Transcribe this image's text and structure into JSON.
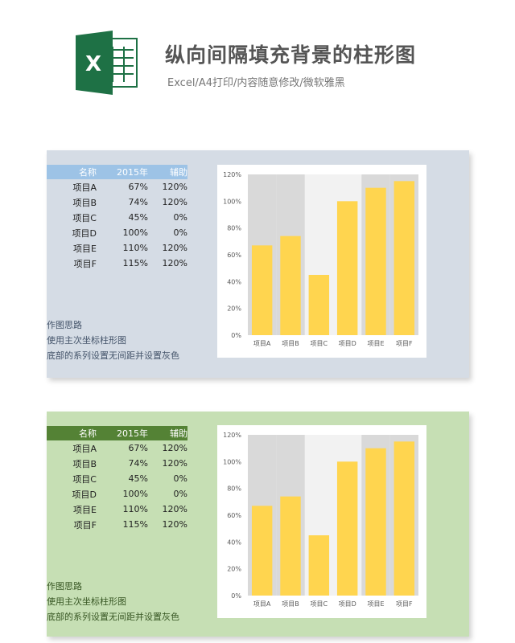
{
  "header": {
    "title": "纵向间隔填充背景的柱形图",
    "subtitle": "Excel/A4打印/内容随意修改/微软雅黑",
    "logo_letter": "X"
  },
  "colors": {
    "panel_1_bg": "#d5dce5",
    "panel_1_header": "#9dc3e6",
    "panel_2_bg": "#c6dfb4",
    "panel_2_header": "#548235",
    "bar": "#ffd54f",
    "band": "#d9d9d9",
    "plot_bg": "#f2f2f2",
    "logo_green": "#1e7145"
  },
  "panels": [
    {
      "table": {
        "headers": [
          "名称",
          "2015年",
          "辅助"
        ],
        "rows": [
          [
            "项目A",
            "67%",
            "120%"
          ],
          [
            "项目B",
            "74%",
            "120%"
          ],
          [
            "项目C",
            "45%",
            "0%"
          ],
          [
            "项目D",
            "100%",
            "0%"
          ],
          [
            "项目E",
            "110%",
            "120%"
          ],
          [
            "项目F",
            "115%",
            "120%"
          ]
        ]
      },
      "notes": [
        "作图思路",
        "使用主次坐标柱形图",
        "底部的系列设置无间距并设置灰色"
      ]
    },
    {
      "table": {
        "headers": [
          "名称",
          "2015年",
          "辅助"
        ],
        "rows": [
          [
            "项目A",
            "67%",
            "120%"
          ],
          [
            "项目B",
            "74%",
            "120%"
          ],
          [
            "项目C",
            "45%",
            "0%"
          ],
          [
            "项目D",
            "100%",
            "0%"
          ],
          [
            "项目E",
            "110%",
            "120%"
          ],
          [
            "项目F",
            "115%",
            "120%"
          ]
        ]
      },
      "notes": [
        "作图思路",
        "使用主次坐标柱形图",
        "底部的系列设置无间距并设置灰色"
      ]
    }
  ],
  "chart_data": [
    {
      "type": "bar",
      "categories": [
        "项目A",
        "项目B",
        "项目C",
        "项目D",
        "项目E",
        "项目F"
      ],
      "series": [
        {
          "values": [
            67,
            74,
            45,
            100,
            110,
            115
          ]
        },
        {
          "values": [
            120,
            120,
            0,
            0,
            120,
            120
          ]
        }
      ],
      "yticks": [
        "0%",
        "20%",
        "40%",
        "60%",
        "80%",
        "100%",
        "120%"
      ],
      "ylim": [
        0,
        120
      ],
      "grid": false
    },
    {
      "type": "bar",
      "categories": [
        "项目A",
        "项目B",
        "项目C",
        "项目D",
        "项目E",
        "项目F"
      ],
      "series": [
        {
          "values": [
            67,
            74,
            45,
            100,
            110,
            115
          ]
        },
        {
          "values": [
            120,
            120,
            0,
            0,
            120,
            120
          ]
        }
      ],
      "yticks": [
        "0%",
        "20%",
        "40%",
        "60%",
        "80%",
        "100%",
        "120%"
      ],
      "ylim": [
        0,
        120
      ],
      "grid": false
    }
  ]
}
